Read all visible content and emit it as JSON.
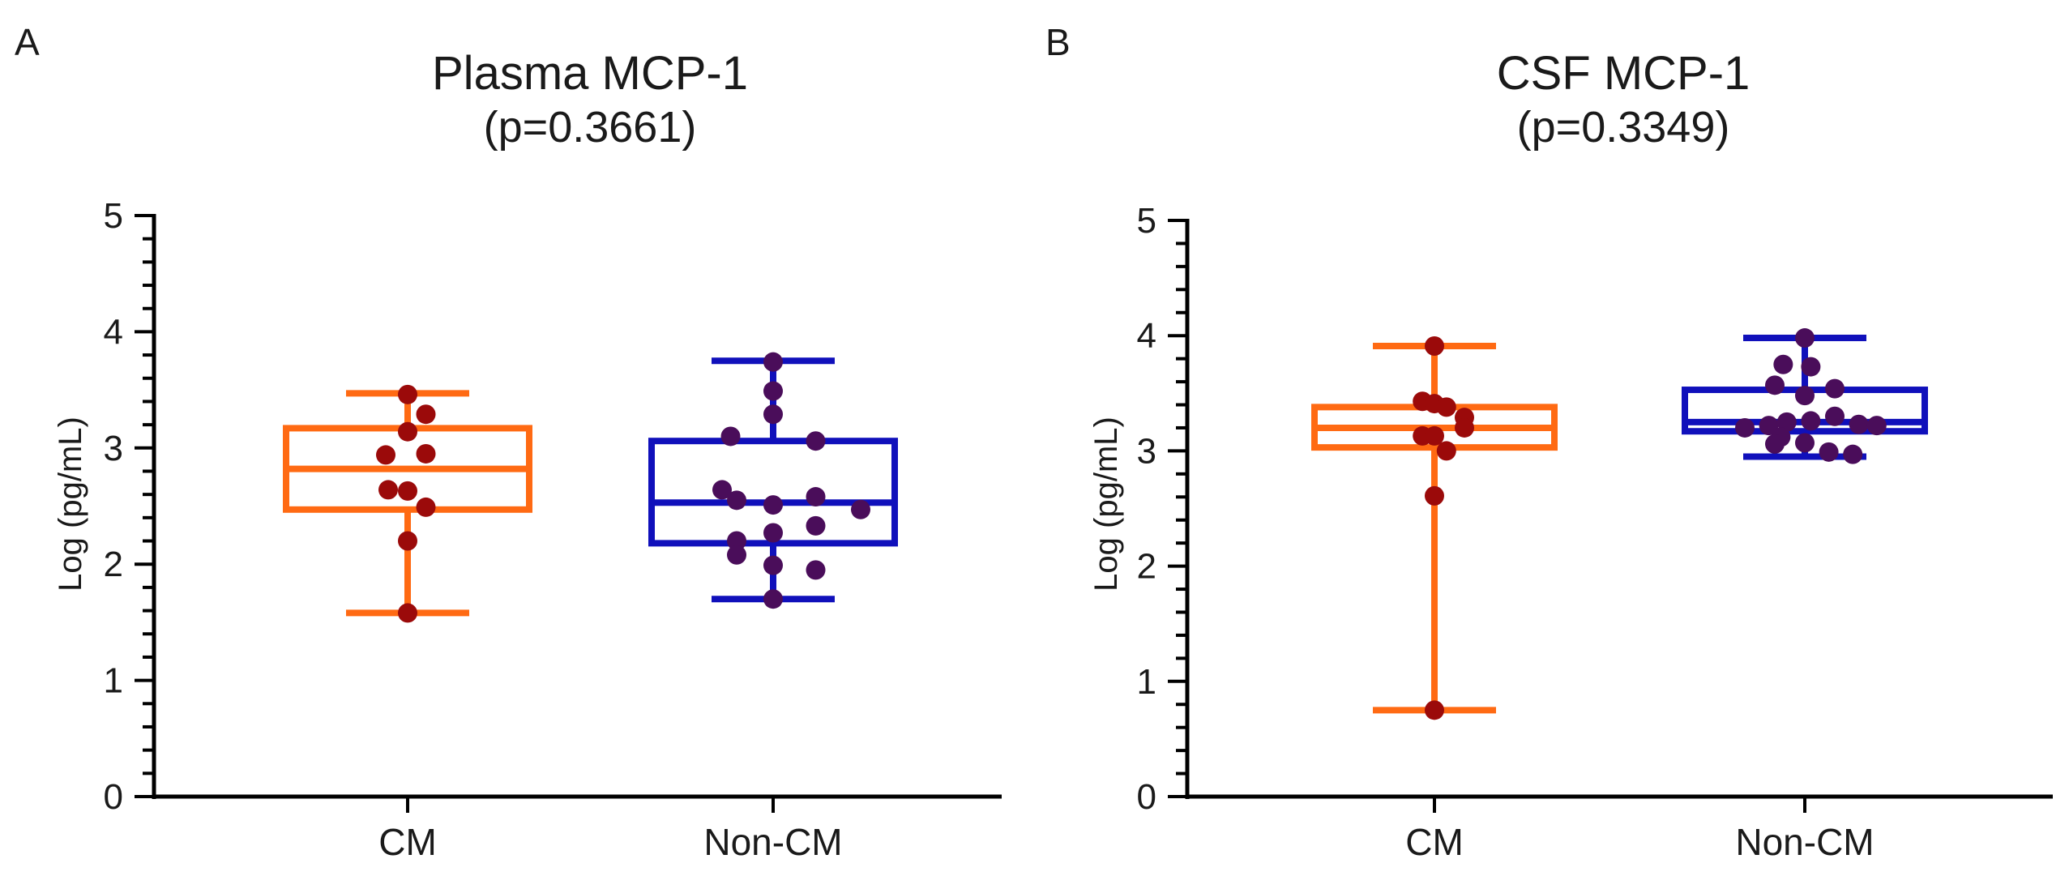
{
  "chart_data": [
    {
      "type": "box",
      "panel": "A",
      "title": "Plasma MCP-1",
      "subtitle": "(p=0.3661)",
      "xlabel": "",
      "ylabel": "Log (pg/mL)",
      "ylim": [
        0,
        5
      ],
      "yticks": [
        "0",
        "1",
        "2",
        "3",
        "4",
        "5"
      ],
      "categories": [
        "CM",
        "Non-CM"
      ],
      "boxes": [
        {
          "name": "CM",
          "min": 1.58,
          "q1": 2.47,
          "median": 2.82,
          "q3": 3.17,
          "max": 3.47,
          "color": "#ff6a13",
          "points": [
            [
              0.0,
              3.46
            ],
            [
              0.15,
              3.29
            ],
            [
              0.0,
              3.14
            ],
            [
              -0.18,
              2.94
            ],
            [
              0.15,
              2.95
            ],
            [
              -0.16,
              2.64
            ],
            [
              0.0,
              2.63
            ],
            [
              0.15,
              2.49
            ],
            [
              0.0,
              2.2
            ],
            [
              0.0,
              1.58
            ]
          ]
        },
        {
          "name": "Non-CM",
          "min": 1.7,
          "q1": 2.18,
          "median": 2.53,
          "q3": 3.06,
          "max": 3.75,
          "color": "#1010bb",
          "points": [
            [
              0.0,
              3.74
            ],
            [
              0.0,
              3.49
            ],
            [
              0.0,
              3.29
            ],
            [
              -0.35,
              3.1
            ],
            [
              0.35,
              3.06
            ],
            [
              -0.42,
              2.64
            ],
            [
              -0.3,
              2.55
            ],
            [
              0.0,
              2.51
            ],
            [
              0.35,
              2.58
            ],
            [
              0.72,
              2.47
            ],
            [
              -0.3,
              2.2
            ],
            [
              0.0,
              2.27
            ],
            [
              0.35,
              2.33
            ],
            [
              -0.3,
              2.08
            ],
            [
              0.0,
              1.99
            ],
            [
              0.35,
              1.95
            ],
            [
              0.0,
              1.7
            ]
          ]
        }
      ],
      "point_color": "#9b0a0a",
      "point_color_2": "#4a0d5a"
    },
    {
      "type": "box",
      "panel": "B",
      "title": "CSF MCP-1",
      "subtitle": "(p=0.3349)",
      "xlabel": "",
      "ylabel": "Log (pg/mL)",
      "ylim": [
        0,
        5
      ],
      "yticks": [
        "0",
        "1",
        "2",
        "3",
        "4",
        "5"
      ],
      "categories": [
        "CM",
        "Non-CM"
      ],
      "boxes": [
        {
          "name": "CM",
          "min": 0.75,
          "q1": 3.03,
          "median": 3.2,
          "q3": 3.38,
          "max": 3.91,
          "color": "#ff6a13",
          "points": [
            [
              0.0,
              3.91
            ],
            [
              -0.1,
              3.43
            ],
            [
              0.0,
              3.41
            ],
            [
              0.1,
              3.38
            ],
            [
              0.25,
              3.29
            ],
            [
              -0.1,
              3.13
            ],
            [
              0.0,
              3.13
            ],
            [
              0.25,
              3.2
            ],
            [
              0.1,
              3.0
            ],
            [
              0.0,
              2.61
            ],
            [
              0.0,
              0.75
            ]
          ]
        },
        {
          "name": "Non-CM",
          "min": 2.95,
          "q1": 3.17,
          "median": 3.25,
          "q3": 3.53,
          "max": 3.98,
          "color": "#1010bb",
          "points": [
            [
              0.0,
              3.98
            ],
            [
              -0.18,
              3.75
            ],
            [
              0.05,
              3.73
            ],
            [
              -0.25,
              3.57
            ],
            [
              0.0,
              3.48
            ],
            [
              0.25,
              3.54
            ],
            [
              -0.5,
              3.2
            ],
            [
              -0.3,
              3.22
            ],
            [
              -0.15,
              3.25
            ],
            [
              0.05,
              3.26
            ],
            [
              0.25,
              3.3
            ],
            [
              0.45,
              3.23
            ],
            [
              0.6,
              3.22
            ],
            [
              -0.2,
              3.12
            ],
            [
              0.0,
              3.07
            ],
            [
              -0.25,
              3.06
            ],
            [
              0.2,
              2.99
            ],
            [
              0.4,
              2.97
            ]
          ]
        }
      ],
      "point_color": "#9b0a0a",
      "point_color_2": "#4a0d5a"
    }
  ]
}
